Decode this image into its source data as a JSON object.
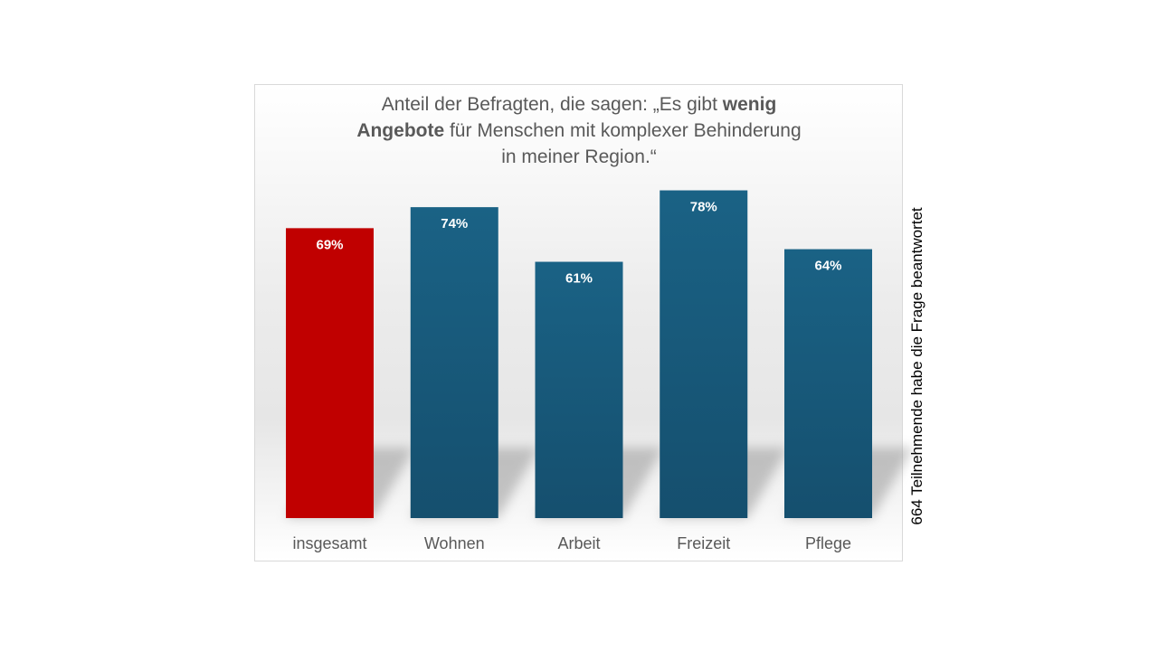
{
  "chart_data": {
    "type": "bar",
    "title_parts": [
      {
        "text": "Anteil der Befragten, die sagen: „Es gibt ",
        "bold": false
      },
      {
        "text": "wenig",
        "bold": true
      },
      {
        "text": "Angebote",
        "bold": true
      },
      {
        "text": "  für Menschen mit komplexer Behinderung",
        "bold": false
      },
      {
        "text": "in meiner Region.“",
        "bold": false
      }
    ],
    "categories": [
      "insgesamt",
      "Wohnen",
      "Arbeit",
      "Freizeit",
      "Pflege"
    ],
    "values": [
      69,
      74,
      61,
      78,
      64
    ],
    "value_labels": [
      "69%",
      "74%",
      "61%",
      "78%",
      "64%"
    ],
    "unit": "%",
    "ylim": [
      0,
      100
    ],
    "grid": false,
    "legend": "none",
    "colors": {
      "highlight": "#c00000",
      "bar_top": "#1a6285",
      "bar_bottom": "#154f6e"
    },
    "highlight_index": 0
  },
  "side_note": "664 Teilnehmende habe die Frage beantwortet"
}
